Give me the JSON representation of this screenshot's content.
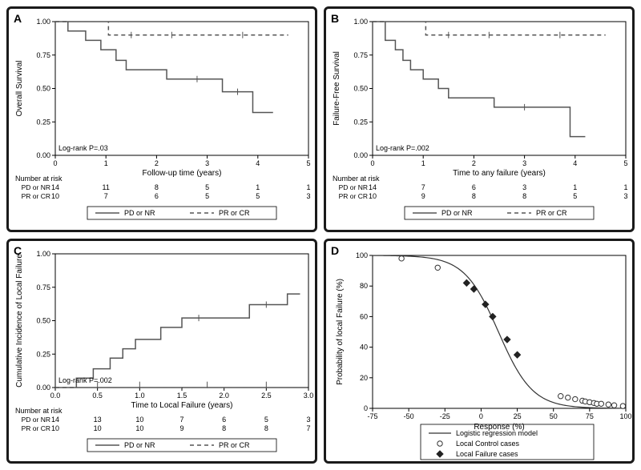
{
  "panels": {
    "A": {
      "letter": "A",
      "ylabel": "Overall Survival",
      "xlabel": "Follow-up time (years)",
      "ylim": [
        0,
        1.0
      ],
      "ytick_step": 0.25,
      "xlim": [
        0,
        5
      ],
      "xtick_step": 1,
      "logrank": "Log-rank P=.03",
      "solid_name": "PD or NR",
      "dash_name": "PR or CR",
      "solid_steps": [
        [
          0,
          1.0
        ],
        [
          0.25,
          1.0
        ],
        [
          0.25,
          0.93
        ],
        [
          0.6,
          0.93
        ],
        [
          0.6,
          0.86
        ],
        [
          0.9,
          0.86
        ],
        [
          0.9,
          0.79
        ],
        [
          1.2,
          0.79
        ],
        [
          1.2,
          0.71
        ],
        [
          1.4,
          0.71
        ],
        [
          1.4,
          0.64
        ],
        [
          2.2,
          0.64
        ],
        [
          2.2,
          0.57
        ],
        [
          3.3,
          0.57
        ],
        [
          3.3,
          0.475
        ],
        [
          3.9,
          0.475
        ],
        [
          3.9,
          0.32
        ],
        [
          4.3,
          0.32
        ]
      ],
      "solid_censors": [
        [
          2.8,
          0.57
        ],
        [
          3.6,
          0.475
        ]
      ],
      "dash_steps": [
        [
          0,
          1.0
        ],
        [
          1.05,
          1.0
        ],
        [
          1.05,
          0.9
        ],
        [
          4.6,
          0.9
        ]
      ],
      "dash_censors": [
        [
          1.5,
          0.9
        ],
        [
          2.3,
          0.9
        ],
        [
          3.7,
          0.9
        ]
      ],
      "risk_title": "Number at risk",
      "risk_rows": [
        {
          "label": "PD or NR",
          "vals": [
            14,
            11,
            8,
            5,
            1,
            1
          ]
        },
        {
          "label": "PR or CR",
          "vals": [
            10,
            7,
            6,
            5,
            5,
            3
          ]
        }
      ]
    },
    "B": {
      "letter": "B",
      "ylabel": "Failure-Free Survival",
      "xlabel": "Time to any failure (years)",
      "ylim": [
        0,
        1.0
      ],
      "ytick_step": 0.25,
      "xlim": [
        0,
        5
      ],
      "xtick_step": 1,
      "logrank": "Log-rank P=.002",
      "solid_name": "PD or NR",
      "dash_name": "PR or CR",
      "solid_steps": [
        [
          0,
          1.0
        ],
        [
          0.25,
          1.0
        ],
        [
          0.25,
          0.86
        ],
        [
          0.45,
          0.86
        ],
        [
          0.45,
          0.79
        ],
        [
          0.6,
          0.79
        ],
        [
          0.6,
          0.71
        ],
        [
          0.75,
          0.71
        ],
        [
          0.75,
          0.64
        ],
        [
          1.0,
          0.64
        ],
        [
          1.0,
          0.57
        ],
        [
          1.3,
          0.57
        ],
        [
          1.3,
          0.5
        ],
        [
          1.5,
          0.5
        ],
        [
          1.5,
          0.43
        ],
        [
          2.4,
          0.43
        ],
        [
          2.4,
          0.36
        ],
        [
          3.9,
          0.36
        ],
        [
          3.9,
          0.14
        ],
        [
          4.2,
          0.14
        ]
      ],
      "solid_censors": [
        [
          3.0,
          0.36
        ]
      ],
      "dash_steps": [
        [
          0,
          1.0
        ],
        [
          1.05,
          1.0
        ],
        [
          1.05,
          0.9
        ],
        [
          4.6,
          0.9
        ]
      ],
      "dash_censors": [
        [
          1.5,
          0.9
        ],
        [
          2.3,
          0.9
        ],
        [
          3.7,
          0.9
        ]
      ],
      "risk_title": "Number at risk",
      "risk_rows": [
        {
          "label": "PD or NR",
          "vals": [
            14,
            7,
            6,
            3,
            1,
            1
          ]
        },
        {
          "label": "PR or CR",
          "vals": [
            10,
            9,
            8,
            8,
            5,
            3
          ]
        }
      ]
    },
    "C": {
      "letter": "C",
      "ylabel": "Cumulative Incidence of Local Failure",
      "xlabel": "Time to Local Failure (years)",
      "ylim": [
        0,
        1.0
      ],
      "ytick_step": 0.25,
      "xlim": [
        0,
        3
      ],
      "xtick_step": 0.5,
      "logrank": "Log-rank P=.002",
      "solid_name": "PD or NR",
      "dash_name": "PR or CR",
      "solid_steps": [
        [
          0,
          0.0
        ],
        [
          0.25,
          0.0
        ],
        [
          0.25,
          0.07
        ],
        [
          0.45,
          0.07
        ],
        [
          0.45,
          0.14
        ],
        [
          0.65,
          0.14
        ],
        [
          0.65,
          0.22
        ],
        [
          0.8,
          0.22
        ],
        [
          0.8,
          0.29
        ],
        [
          0.95,
          0.29
        ],
        [
          0.95,
          0.36
        ],
        [
          1.25,
          0.36
        ],
        [
          1.25,
          0.45
        ],
        [
          1.5,
          0.45
        ],
        [
          1.5,
          0.52
        ],
        [
          2.3,
          0.52
        ],
        [
          2.3,
          0.62
        ],
        [
          2.75,
          0.62
        ],
        [
          2.75,
          0.7
        ],
        [
          2.9,
          0.7
        ]
      ],
      "solid_censors": [
        [
          1.7,
          0.52
        ],
        [
          2.5,
          0.62
        ]
      ],
      "dash_steps": [
        [
          0,
          0.0
        ],
        [
          2.9,
          0.0
        ]
      ],
      "dash_censors": [
        [
          0.5,
          0.02
        ],
        [
          1.0,
          0.02
        ],
        [
          1.8,
          0.02
        ],
        [
          2.5,
          0.02
        ]
      ],
      "risk_title": "Number at risk",
      "risk_rows": [
        {
          "label": "PD or NR",
          "vals": [
            14,
            13,
            10,
            7,
            6,
            5,
            3
          ]
        },
        {
          "label": "PR or CR",
          "vals": [
            10,
            10,
            10,
            9,
            8,
            8,
            7
          ]
        }
      ]
    },
    "D": {
      "letter": "D",
      "ylabel": "Probability of local Failure (%)",
      "xlabel": "Response (%)",
      "ylim": [
        0,
        100
      ],
      "ytick_step": 20,
      "xlim": [
        -75,
        100
      ],
      "xtick_step": 25,
      "curve_slope": 0.085,
      "curve_mid": 12,
      "legend_items": [
        "Logistic regression model",
        "Local Control cases",
        "Local Failure cases"
      ],
      "open_points": [
        [
          -55,
          98
        ],
        [
          -30,
          92
        ],
        [
          55,
          8
        ],
        [
          60,
          7
        ],
        [
          65,
          6
        ],
        [
          70,
          5
        ],
        [
          72,
          4.5
        ],
        [
          75,
          4
        ],
        [
          78,
          3.5
        ],
        [
          80,
          3
        ],
        [
          83,
          3
        ],
        [
          88,
          2.5
        ],
        [
          92,
          2
        ],
        [
          98,
          1.5
        ]
      ],
      "diamond_points": [
        [
          -10,
          82
        ],
        [
          -5,
          78
        ],
        [
          3,
          68
        ],
        [
          8,
          60
        ],
        [
          18,
          45
        ],
        [
          25,
          35
        ]
      ]
    }
  },
  "colors": {
    "border": "#1a1a1a",
    "line": "#555555",
    "bg": "#ffffff",
    "text": "#000000"
  },
  "fontsize": {
    "tick": 9,
    "label": 10,
    "legend": 9
  }
}
